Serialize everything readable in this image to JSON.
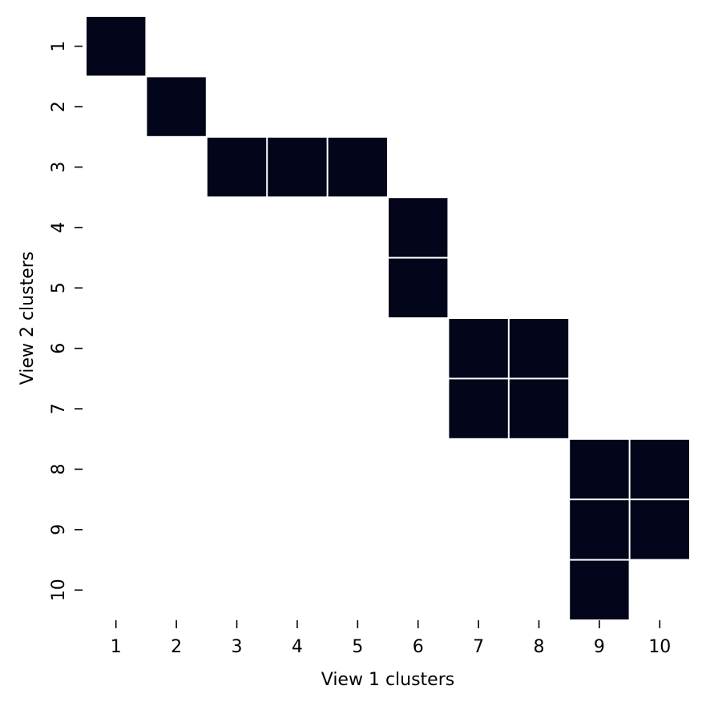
{
  "chart_data": {
    "type": "heatmap",
    "title": "",
    "xlabel": "View 1 clusters",
    "ylabel": "View 2 clusters",
    "x_categories": [
      "1",
      "2",
      "3",
      "4",
      "5",
      "6",
      "7",
      "8",
      "9",
      "10"
    ],
    "y_categories": [
      "1",
      "2",
      "3",
      "4",
      "5",
      "6",
      "7",
      "8",
      "9",
      "10"
    ],
    "filled_color": "#03051a",
    "empty_color": "#ffffff",
    "grid_line_color": "#ffffff",
    "colorbar": false,
    "matrix": [
      [
        1,
        0,
        0,
        0,
        0,
        0,
        0,
        0,
        0,
        0
      ],
      [
        0,
        1,
        0,
        0,
        0,
        0,
        0,
        0,
        0,
        0
      ],
      [
        0,
        0,
        1,
        1,
        1,
        0,
        0,
        0,
        0,
        0
      ],
      [
        0,
        0,
        0,
        0,
        0,
        1,
        0,
        0,
        0,
        0
      ],
      [
        0,
        0,
        0,
        0,
        0,
        1,
        0,
        0,
        0,
        0
      ],
      [
        0,
        0,
        0,
        0,
        0,
        0,
        1,
        1,
        0,
        0
      ],
      [
        0,
        0,
        0,
        0,
        0,
        0,
        1,
        1,
        0,
        0
      ],
      [
        0,
        0,
        0,
        0,
        0,
        0,
        0,
        0,
        1,
        1
      ],
      [
        0,
        0,
        0,
        0,
        0,
        0,
        0,
        0,
        1,
        1
      ],
      [
        0,
        0,
        0,
        0,
        0,
        0,
        0,
        0,
        1,
        0
      ]
    ]
  }
}
